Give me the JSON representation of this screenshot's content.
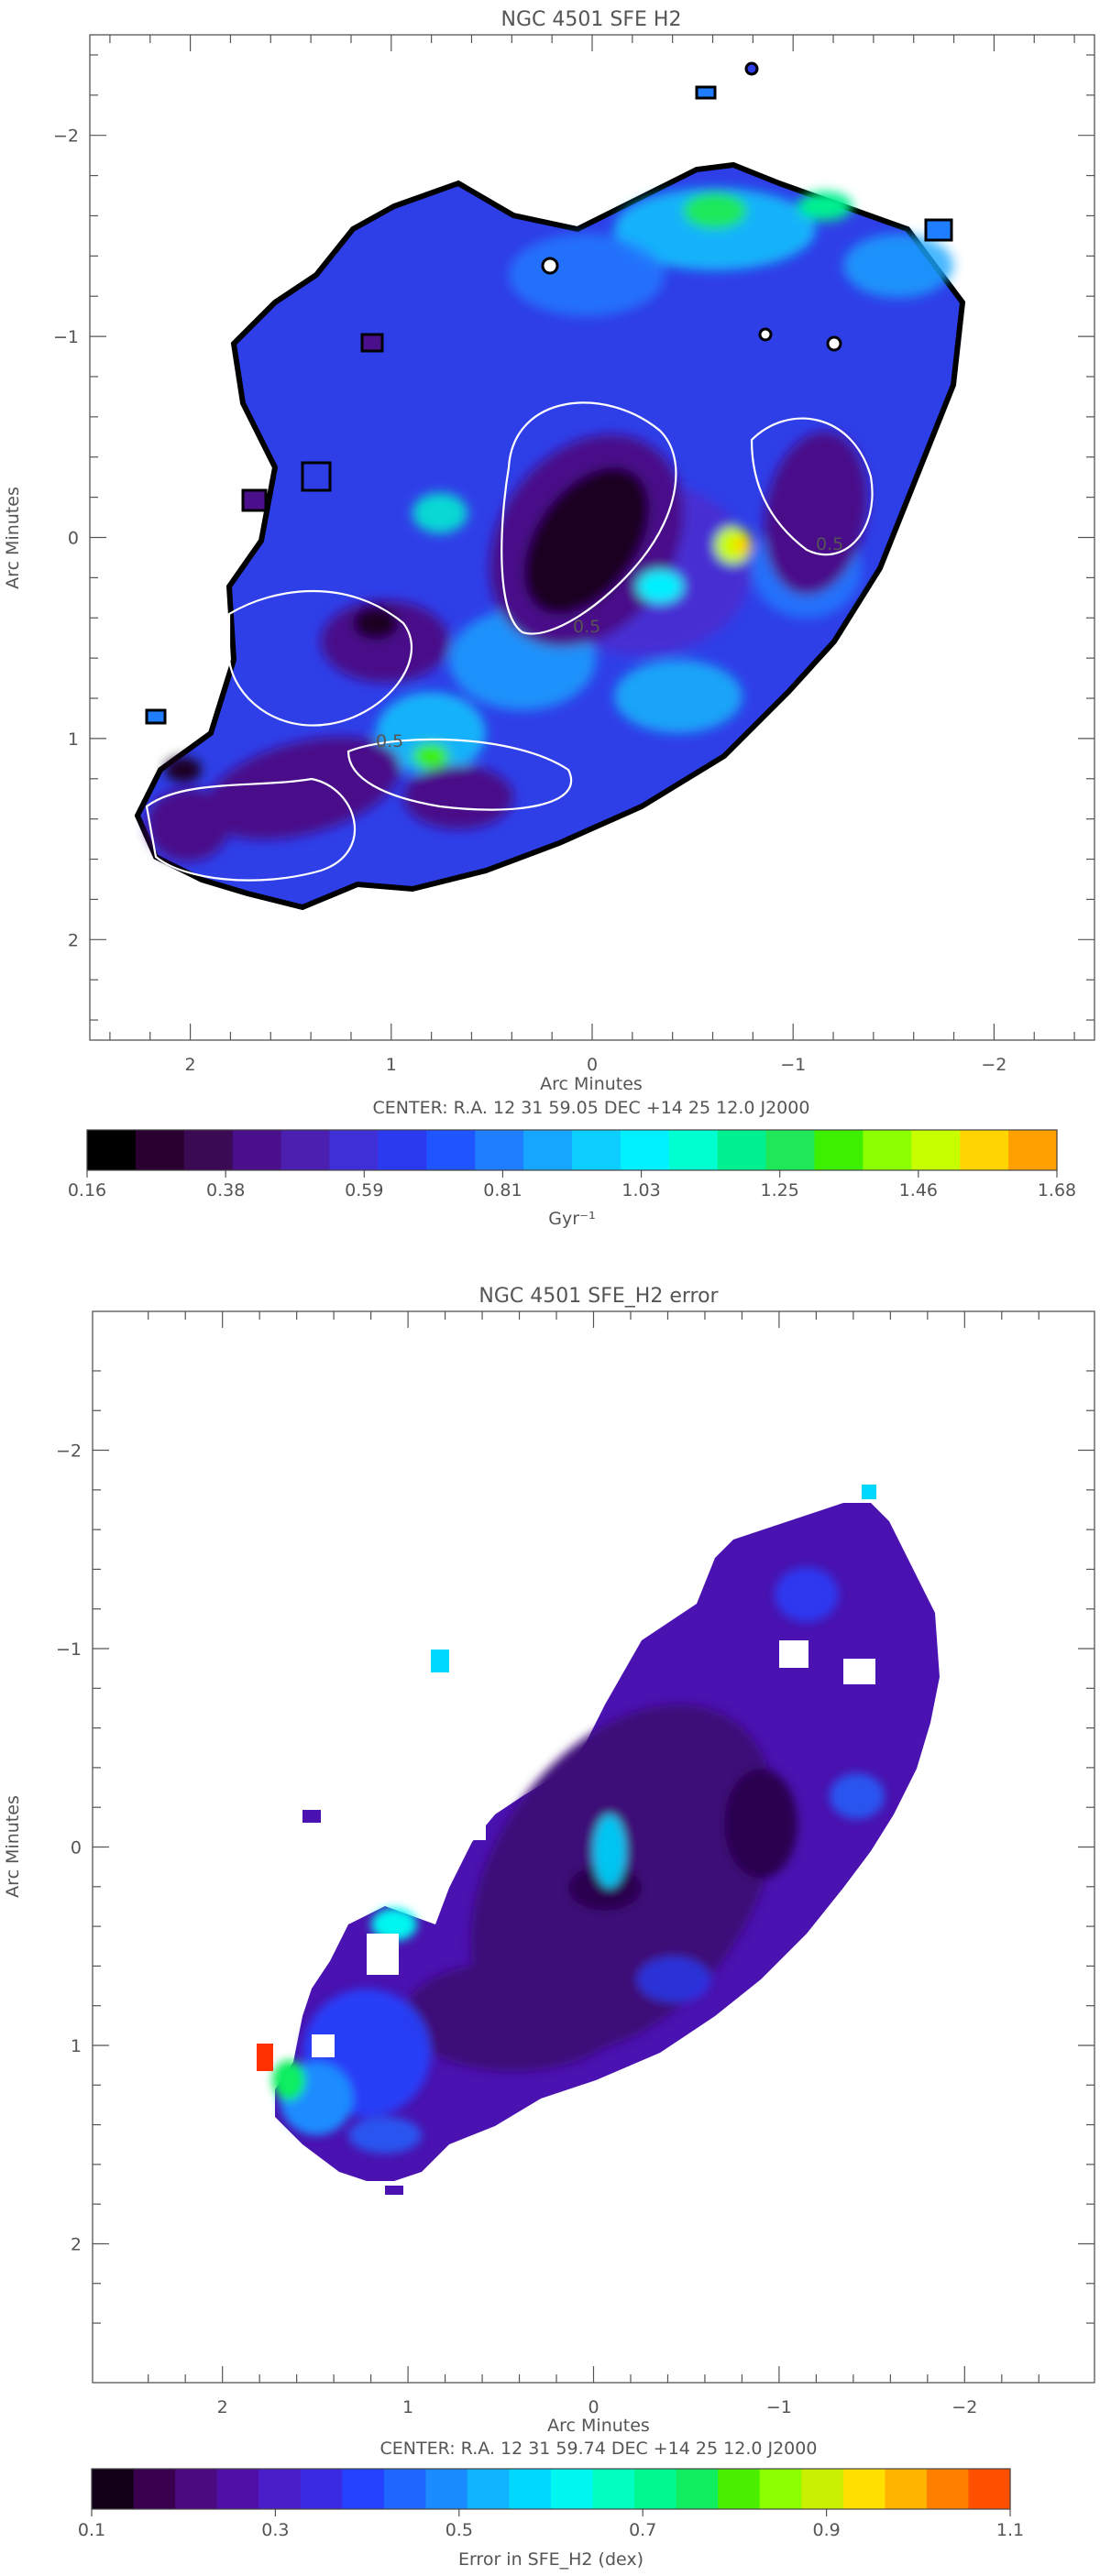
{
  "chart_data": [
    {
      "type": "heatmap",
      "title": "NGC 4501 SFE H2",
      "xlabel": "Arc Minutes",
      "ylabel": "Arc Minutes",
      "center_label": "CENTER:   R.A. 12 31 59.05     DEC   +14 25 12.0     J2000",
      "xlim": [
        2.5,
        -2.5
      ],
      "ylim": [
        2.5,
        -2.5
      ],
      "x_ticks": [
        2,
        1,
        0,
        -1,
        -2
      ],
      "x_tick_labels": [
        "2",
        "1",
        "0",
        "−1",
        "−2"
      ],
      "y_ticks": [
        -2,
        -1,
        0,
        1,
        2
      ],
      "y_tick_labels": [
        "−2",
        "−1",
        "0",
        "1",
        "2"
      ],
      "contour_label": "0.5",
      "colorbar": {
        "label": "Gyr⁻¹",
        "min": 0.16,
        "max": 1.68,
        "tick_labels": [
          "0.16",
          "0.38",
          "0.59",
          "0.81",
          "1.03",
          "1.25",
          "1.46",
          "1.68"
        ],
        "colors": [
          "#000000",
          "#2a0030",
          "#3a0a55",
          "#4a0f8a",
          "#4b1fb0",
          "#3f2fd6",
          "#2a3bef",
          "#1f55ff",
          "#1f7dff",
          "#16a6ff",
          "#0dcfff",
          "#00f0ff",
          "#00ffd0",
          "#00f090",
          "#1ee85a",
          "#3cf000",
          "#8cff00",
          "#c8ff00",
          "#ffd400",
          "#ff9f00"
        ]
      }
    },
    {
      "type": "heatmap",
      "title": "NGC 4501 SFE_H2 error",
      "xlabel": "Arc Minutes",
      "ylabel": "Arc Minutes",
      "center_label": "CENTER:   R.A. 12 31 59.74     DEC   +14 25 12.0     J2000",
      "xlim": [
        2.7,
        -2.7
      ],
      "ylim": [
        2.7,
        -2.7
      ],
      "x_ticks": [
        2,
        1,
        0,
        -1,
        -2
      ],
      "x_tick_labels": [
        "2",
        "1",
        "0",
        "−1",
        "−2"
      ],
      "y_ticks": [
        -2,
        -1,
        0,
        1,
        2
      ],
      "y_tick_labels": [
        "−2",
        "−1",
        "0",
        "1",
        "2"
      ],
      "colorbar": {
        "label": "Error in SFE_H2 (dex)",
        "min": 0.1,
        "max": 1.1,
        "tick_labels": [
          "0.1",
          "0.3",
          "0.5",
          "0.7",
          "0.9",
          "1.1"
        ],
        "colors": [
          "#120018",
          "#3a0050",
          "#4b0a80",
          "#5010a8",
          "#4a1ec8",
          "#3a2ae4",
          "#2442ff",
          "#1e66ff",
          "#1a8cff",
          "#10b4ff",
          "#00d8ff",
          "#00f6f0",
          "#00ffc0",
          "#00f890",
          "#10ee60",
          "#4af000",
          "#8cff00",
          "#c8f000",
          "#ffe000",
          "#ffb400",
          "#ff8000",
          "#ff5000"
        ]
      }
    }
  ]
}
